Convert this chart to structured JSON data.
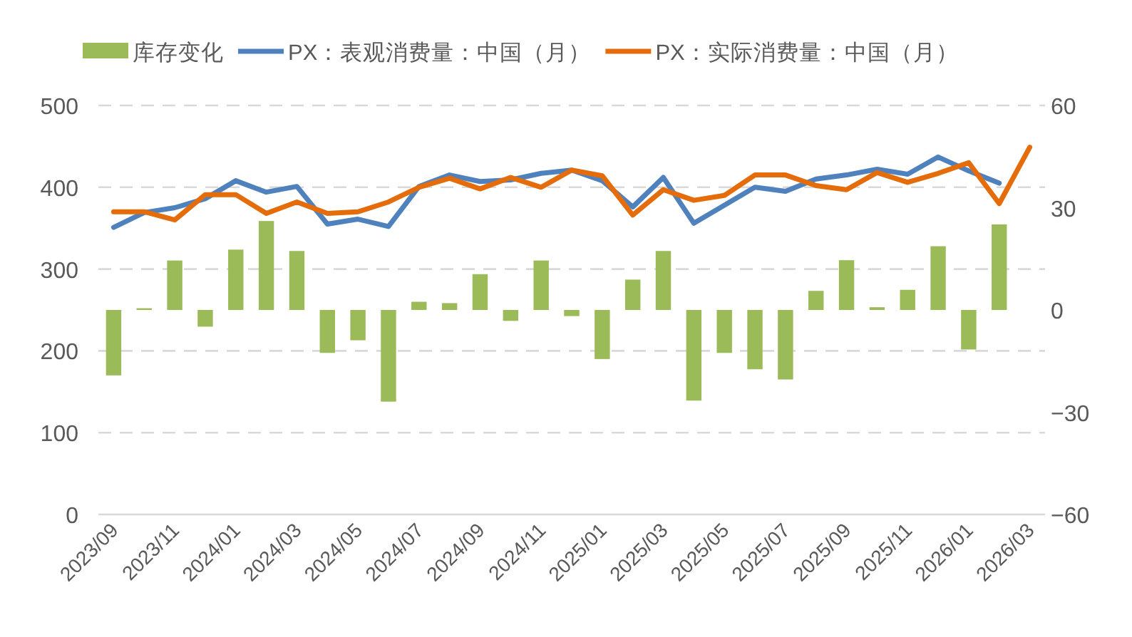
{
  "chart_data": {
    "type": "bar",
    "categories": [
      "2023/09",
      null,
      "2023/11",
      null,
      "2024/01",
      null,
      "2024/03",
      null,
      "2024/05",
      null,
      "2024/07",
      null,
      "2024/09",
      null,
      "2024/11",
      null,
      "2025/01",
      null,
      "2025/03",
      null,
      "2025/05",
      null,
      "2025/07",
      null,
      "2025/09",
      null,
      "2025/11",
      null,
      "2026/01",
      null,
      "2026/03"
    ],
    "series": [
      {
        "name": "库存变化",
        "axis": "y2",
        "color": "#9bbb59",
        "values": [
          -19.2,
          0.5,
          14.5,
          -4.9,
          17.7,
          26.1,
          17.3,
          -12.6,
          -8.9,
          -26.9,
          2.4,
          2.0,
          10.5,
          -3.2,
          14.5,
          -1.8,
          -14.4,
          8.9,
          17.3,
          -26.6,
          -12.6,
          -17.4,
          -20.4,
          5.6,
          14.6,
          0.8,
          5.9,
          18.7,
          -11.6,
          25.1,
          null
        ]
      },
      {
        "name": "PX：表观消费量：中国（月）",
        "type": "line",
        "axis": "y",
        "color": "#4f81bd",
        "values": [
          351,
          369,
          375,
          386,
          408,
          394,
          401,
          355,
          361,
          352,
          401,
          415,
          407,
          409,
          417,
          421,
          408,
          376,
          412,
          356,
          378,
          400,
          395,
          410,
          415,
          422,
          416,
          437,
          420,
          405,
          null
        ]
      },
      {
        "name": "PX：实际消费量：中国（月）",
        "type": "line",
        "axis": "y",
        "color": "#e46c0a",
        "values": [
          370,
          370,
          360,
          391,
          391,
          368,
          382,
          368,
          370,
          382,
          400,
          411,
          398,
          412,
          400,
          421,
          414,
          366,
          397,
          384,
          390,
          415,
          415,
          402,
          397,
          418,
          406,
          417,
          430,
          380,
          449
        ]
      }
    ],
    "ylim": [
      0,
      500
    ],
    "yticks": [
      0,
      100,
      200,
      300,
      400,
      500
    ],
    "y2lim": [
      -60,
      60
    ],
    "y2ticks": [
      -60,
      -30,
      0,
      30,
      60
    ],
    "grid": "y",
    "legend": "top",
    "line_style": "solid",
    "marker": "none"
  }
}
